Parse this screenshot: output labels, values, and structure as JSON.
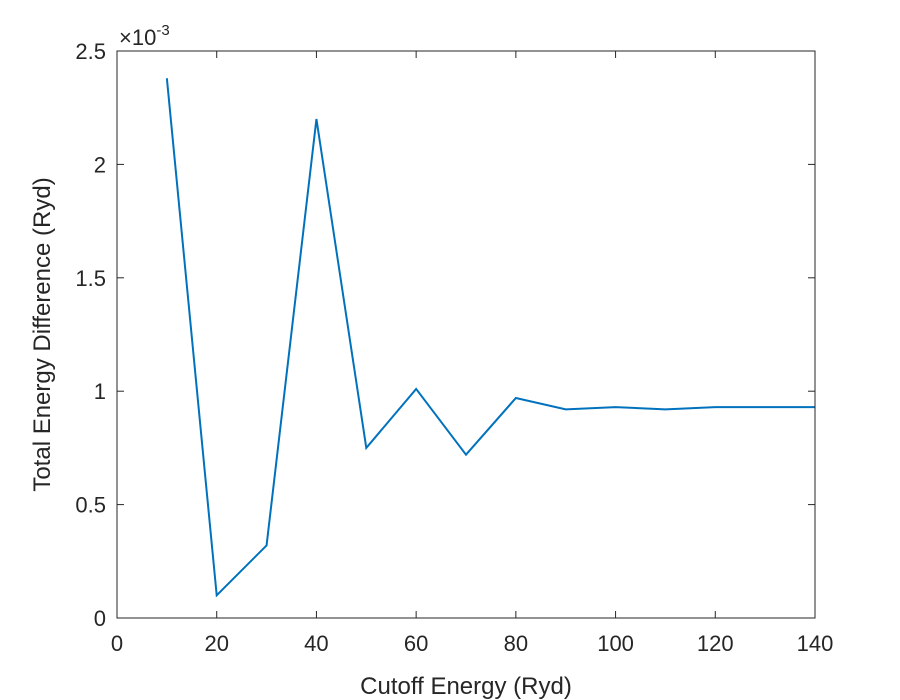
{
  "chart_data": {
    "type": "line",
    "title": "",
    "xlabel": "Cutoff Energy (Ryd)",
    "ylabel": "Total Energy Difference (Ryd)",
    "xlim": [
      0,
      140
    ],
    "ylim": [
      0,
      0.0025
    ],
    "xticks": [
      0,
      20,
      40,
      60,
      80,
      100,
      120,
      140
    ],
    "yticks": [
      0,
      0.0005,
      0.001,
      0.0015,
      0.002,
      0.0025
    ],
    "xtick_labels": [
      "0",
      "20",
      "40",
      "60",
      "80",
      "100",
      "120",
      "140"
    ],
    "ytick_labels": [
      "0",
      "0.5",
      "1",
      "1.5",
      "2",
      "2.5"
    ],
    "y_exponent": {
      "times": "×10",
      "power": "-3"
    },
    "grid": false,
    "legend": "none",
    "line_color": "#0072BD",
    "series": [
      {
        "x": [
          10,
          20,
          30,
          40,
          50,
          60,
          70,
          80,
          90,
          100,
          110,
          120,
          130,
          140
        ],
        "y": [
          0.00238,
          0.0001,
          0.00032,
          0.0022,
          0.00075,
          0.00101,
          0.00072,
          0.00097,
          0.00092,
          0.00093,
          0.00092,
          0.00093,
          0.00093,
          0.00093
        ]
      }
    ]
  }
}
